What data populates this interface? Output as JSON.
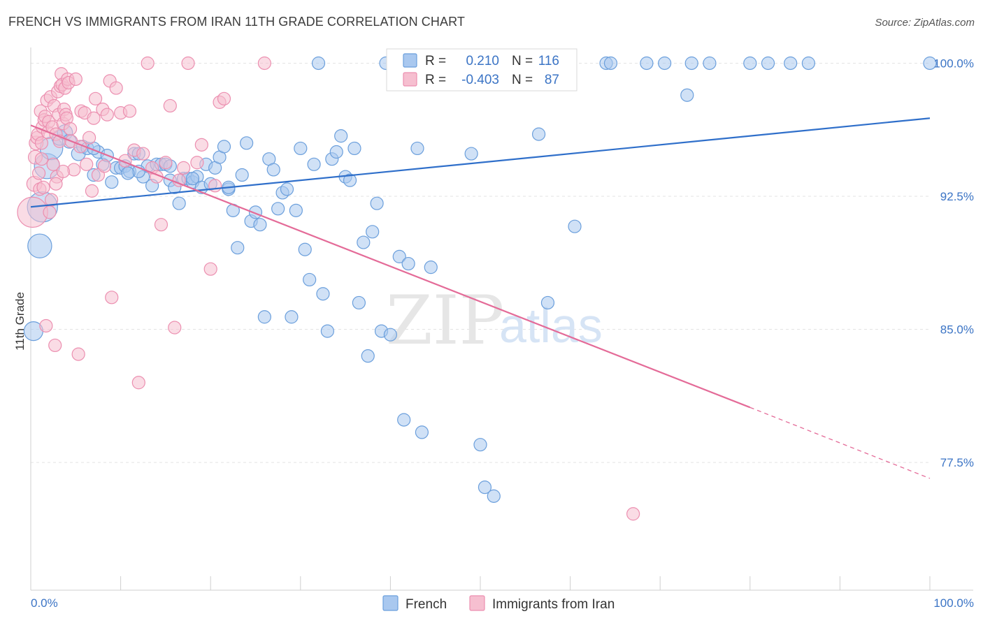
{
  "title": "FRENCH VS IMMIGRANTS FROM IRAN 11TH GRADE CORRELATION CHART",
  "source": "Source: ZipAtlas.com",
  "watermark": {
    "zip": "ZIP",
    "atlas": "atlas"
  },
  "colors": {
    "french_fill": "#a9c8ef",
    "french_stroke": "#6b9fdc",
    "french_line": "#2f6fca",
    "iran_fill": "#f6bfd0",
    "iran_stroke": "#ec8fb0",
    "iran_line": "#e46b98",
    "tick_text": "#3b74c5",
    "grid": "#e3e3e3"
  },
  "legend": {
    "r_label": "R =",
    "n_label": "N =",
    "french_r": "0.210",
    "french_n": "116",
    "iran_r": "-0.403",
    "iran_n": "87"
  },
  "chart_data": {
    "type": "scatter",
    "title": "FRENCH VS IMMIGRANTS FROM IRAN 11TH GRADE CORRELATION CHART",
    "xlabel": "",
    "ylabel": "11th Grade",
    "xlim": [
      0,
      100
    ],
    "ylim": [
      70.3,
      101.2
    ],
    "x_tick_labels": [
      "0.0%",
      "100.0%"
    ],
    "y_ticks": [
      100.0,
      92.5,
      85.0,
      77.5
    ],
    "y_tick_labels": [
      "100.0%",
      "92.5%",
      "85.0%",
      "77.5%"
    ],
    "grid": true,
    "series": [
      {
        "name": "French",
        "r": 0.21,
        "n": 116,
        "trend": {
          "x0": 0,
          "y0": 91.9,
          "x1": 100,
          "y1": 96.9
        },
        "points": [
          [
            0.3,
            84.9,
            1.5
          ],
          [
            1,
            89.7,
            1.9
          ],
          [
            1.3,
            91.9,
            2.4
          ],
          [
            1.8,
            94.2,
            2
          ],
          [
            2.3,
            95.2,
            1.8
          ],
          [
            3.2,
            95.8,
            1.2
          ],
          [
            3.8,
            96.1,
            1.2
          ],
          [
            4.3,
            95.6,
            1.1
          ],
          [
            5.3,
            94.9,
            1.1
          ],
          [
            5.8,
            95.3,
            1
          ],
          [
            6.3,
            95.2,
            1
          ],
          [
            7.0,
            93.7,
            1
          ],
          [
            7.5,
            95.0,
            1
          ],
          [
            8.0,
            94.3,
            1
          ],
          [
            8.5,
            94.8,
            1
          ],
          [
            9.0,
            93.3,
            1
          ],
          [
            9.5,
            94.1,
            1
          ],
          [
            10.0,
            94.1,
            1
          ],
          [
            10.5,
            94.2,
            1
          ],
          [
            11.0,
            93.9,
            1
          ],
          [
            11.5,
            94.9,
            1
          ],
          [
            12.0,
            94.9,
            1
          ],
          [
            12.5,
            93.6,
            1
          ],
          [
            13.0,
            94.2,
            1
          ],
          [
            13.5,
            93.1,
            1
          ],
          [
            14.0,
            94.3,
            1
          ],
          [
            14.5,
            94.3,
            1
          ],
          [
            15.0,
            94.3,
            1
          ],
          [
            15.5,
            93.4,
            1
          ],
          [
            16.0,
            93.0,
            1
          ],
          [
            16.5,
            92.1,
            1
          ],
          [
            17.0,
            93.5,
            1
          ],
          [
            17.5,
            93.5,
            1
          ],
          [
            18.0,
            93.3,
            1
          ],
          [
            18.5,
            93.6,
            1
          ],
          [
            19.0,
            93.0,
            1
          ],
          [
            19.5,
            94.3,
            1
          ],
          [
            20.0,
            93.2,
            1
          ],
          [
            20.5,
            94.1,
            1
          ],
          [
            21.0,
            94.7,
            1
          ],
          [
            21.5,
            95.3,
            1
          ],
          [
            22.0,
            92.9,
            1
          ],
          [
            22.5,
            91.7,
            1
          ],
          [
            23.0,
            89.6,
            1
          ],
          [
            23.5,
            93.7,
            1
          ],
          [
            24.0,
            95.5,
            1
          ],
          [
            24.5,
            91.1,
            1
          ],
          [
            25.0,
            91.6,
            1
          ],
          [
            25.5,
            90.9,
            1
          ],
          [
            26.0,
            85.7,
            1
          ],
          [
            26.5,
            94.6,
            1
          ],
          [
            27.0,
            94.0,
            1
          ],
          [
            27.5,
            91.8,
            1
          ],
          [
            28.0,
            92.7,
            1
          ],
          [
            28.5,
            92.9,
            1
          ],
          [
            29.0,
            85.7,
            1
          ],
          [
            29.5,
            91.7,
            1
          ],
          [
            30.0,
            95.2,
            1
          ],
          [
            30.5,
            89.5,
            1
          ],
          [
            31.0,
            87.8,
            1
          ],
          [
            31.5,
            94.3,
            1
          ],
          [
            32.0,
            100.0,
            1
          ],
          [
            32.5,
            87.0,
            1
          ],
          [
            33.0,
            84.9,
            1
          ],
          [
            33.5,
            94.6,
            1
          ],
          [
            34.0,
            95.0,
            1
          ],
          [
            34.5,
            95.9,
            1
          ],
          [
            35.0,
            93.6,
            1
          ],
          [
            35.5,
            93.4,
            1
          ],
          [
            36.0,
            95.2,
            1
          ],
          [
            36.5,
            86.5,
            1
          ],
          [
            37.0,
            89.9,
            1
          ],
          [
            37.5,
            83.5,
            1
          ],
          [
            38.0,
            90.5,
            1
          ],
          [
            38.5,
            92.1,
            1
          ],
          [
            39.0,
            84.9,
            1
          ],
          [
            39.5,
            100.0,
            1
          ],
          [
            40.0,
            84.7,
            1
          ],
          [
            40.5,
            100.0,
            1
          ],
          [
            41.0,
            89.1,
            1
          ],
          [
            41.5,
            79.9,
            1
          ],
          [
            42.0,
            88.7,
            1
          ],
          [
            42.5,
            100.0,
            1
          ],
          [
            43.0,
            95.2,
            1
          ],
          [
            43.5,
            79.2,
            1
          ],
          [
            44.0,
            100.0,
            1
          ],
          [
            44.5,
            88.5,
            1
          ],
          [
            45.0,
            100.0,
            1
          ],
          [
            47.5,
            100.0,
            1
          ],
          [
            49.0,
            94.9,
            1
          ],
          [
            50.0,
            78.5,
            1
          ],
          [
            50.5,
            76.1,
            1
          ],
          [
            51.5,
            75.6,
            1
          ],
          [
            52.0,
            100.0,
            1
          ],
          [
            54.0,
            100.0,
            1
          ],
          [
            55.5,
            100.0,
            1
          ],
          [
            56.5,
            96.0,
            1
          ],
          [
            57.5,
            86.5,
            1
          ],
          [
            60.0,
            100.0,
            1
          ],
          [
            60.5,
            90.8,
            1
          ],
          [
            64.0,
            100.0,
            1
          ],
          [
            64.5,
            100.0,
            1
          ],
          [
            68.5,
            100.0,
            1
          ],
          [
            70.5,
            100.0,
            1
          ],
          [
            73.0,
            98.2,
            1
          ],
          [
            73.5,
            100.0,
            1
          ],
          [
            75.5,
            100.0,
            1
          ],
          [
            80.0,
            100.0,
            1
          ],
          [
            82.0,
            100.0,
            1
          ],
          [
            84.5,
            100.0,
            1
          ],
          [
            86.5,
            100.0,
            1
          ],
          [
            100.0,
            100.0,
            1
          ],
          [
            7.0,
            95.2,
            1
          ],
          [
            12.0,
            93.9,
            1
          ],
          [
            18.0,
            93.5,
            1
          ],
          [
            22.0,
            93.0,
            1
          ],
          [
            15.5,
            94.2,
            1
          ],
          [
            10.8,
            93.8,
            1
          ]
        ]
      },
      {
        "name": "Immigrants from Iran",
        "r": -0.403,
        "n": 87,
        "trend": {
          "x0": 0,
          "y0": 96.5,
          "x1": 80,
          "y1": 80.6,
          "dash_x1": 100,
          "dash_y1": 76.6
        },
        "points": [
          [
            0.2,
            91.6,
            2.4
          ],
          [
            0.4,
            93.2,
            1.2
          ],
          [
            0.5,
            94.7,
            1.1
          ],
          [
            0.6,
            95.5,
            1.1
          ],
          [
            0.7,
            95.8,
            1
          ],
          [
            0.8,
            96.0,
            1
          ],
          [
            0.9,
            93.8,
            1
          ],
          [
            1.0,
            92.9,
            1
          ],
          [
            1.1,
            97.3,
            1
          ],
          [
            1.2,
            95.5,
            1
          ],
          [
            1.3,
            96.4,
            1
          ],
          [
            1.4,
            93.0,
            1
          ],
          [
            1.5,
            96.8,
            1
          ],
          [
            1.6,
            97.0,
            1
          ],
          [
            1.7,
            85.2,
            1
          ],
          [
            1.8,
            97.9,
            1
          ],
          [
            1.9,
            96.1,
            1
          ],
          [
            2.0,
            96.7,
            1
          ],
          [
            2.1,
            91.6,
            1
          ],
          [
            2.2,
            98.1,
            1
          ],
          [
            2.3,
            92.3,
            1
          ],
          [
            2.4,
            96.4,
            1
          ],
          [
            2.5,
            94.3,
            1
          ],
          [
            2.6,
            97.6,
            1
          ],
          [
            2.7,
            84.1,
            1
          ],
          [
            2.8,
            96.0,
            1
          ],
          [
            2.9,
            93.6,
            1
          ],
          [
            3.0,
            98.4,
            1
          ],
          [
            3.1,
            97.1,
            1
          ],
          [
            3.2,
            95.6,
            1
          ],
          [
            3.3,
            98.7,
            1
          ],
          [
            3.4,
            99.4,
            1
          ],
          [
            3.5,
            98.8,
            1
          ],
          [
            3.6,
            96.6,
            1
          ],
          [
            3.7,
            97.4,
            1
          ],
          [
            3.8,
            98.6,
            1
          ],
          [
            3.9,
            97.1,
            1
          ],
          [
            4.0,
            96.9,
            1
          ],
          [
            4.1,
            99.1,
            1
          ],
          [
            4.2,
            98.9,
            1
          ],
          [
            4.5,
            95.6,
            1
          ],
          [
            4.8,
            94.0,
            1
          ],
          [
            5.0,
            99.1,
            1
          ],
          [
            5.3,
            83.6,
            1
          ],
          [
            5.6,
            97.3,
            1
          ],
          [
            6.0,
            97.2,
            1
          ],
          [
            6.5,
            95.8,
            1
          ],
          [
            7.0,
            96.9,
            1
          ],
          [
            7.2,
            98.0,
            1
          ],
          [
            7.5,
            93.7,
            1
          ],
          [
            8.0,
            97.4,
            1
          ],
          [
            8.5,
            97.1,
            1
          ],
          [
            8.8,
            99.0,
            1
          ],
          [
            9.0,
            86.8,
            1
          ],
          [
            9.5,
            98.6,
            1
          ],
          [
            10.0,
            97.2,
            1
          ],
          [
            10.5,
            94.5,
            1
          ],
          [
            11.0,
            97.3,
            1
          ],
          [
            11.5,
            95.1,
            1
          ],
          [
            12.0,
            82.0,
            1
          ],
          [
            12.5,
            94.9,
            1
          ],
          [
            13.0,
            100.0,
            1
          ],
          [
            13.5,
            94.1,
            1
          ],
          [
            14.0,
            93.6,
            1
          ],
          [
            14.5,
            90.9,
            1
          ],
          [
            15.0,
            94.4,
            1
          ],
          [
            15.5,
            97.6,
            1
          ],
          [
            16.0,
            85.1,
            1
          ],
          [
            16.5,
            93.4,
            1
          ],
          [
            17.0,
            94.1,
            1
          ],
          [
            17.5,
            100.0,
            1
          ],
          [
            18.5,
            94.4,
            1
          ],
          [
            19.0,
            95.4,
            1
          ],
          [
            20.0,
            88.4,
            1
          ],
          [
            20.5,
            93.1,
            1
          ],
          [
            21.0,
            97.8,
            1
          ],
          [
            21.5,
            98.0,
            1
          ],
          [
            26.0,
            100.0,
            1
          ],
          [
            67.0,
            74.6,
            1
          ],
          [
            6.2,
            94.3,
            1
          ],
          [
            4.4,
            96.3,
            1
          ],
          [
            2.8,
            93.2,
            1
          ],
          [
            1.2,
            94.6,
            1
          ],
          [
            3.6,
            93.9,
            1
          ],
          [
            5.5,
            95.3,
            1
          ],
          [
            8.2,
            94.2,
            1
          ],
          [
            6.8,
            92.8,
            1
          ]
        ]
      }
    ]
  }
}
